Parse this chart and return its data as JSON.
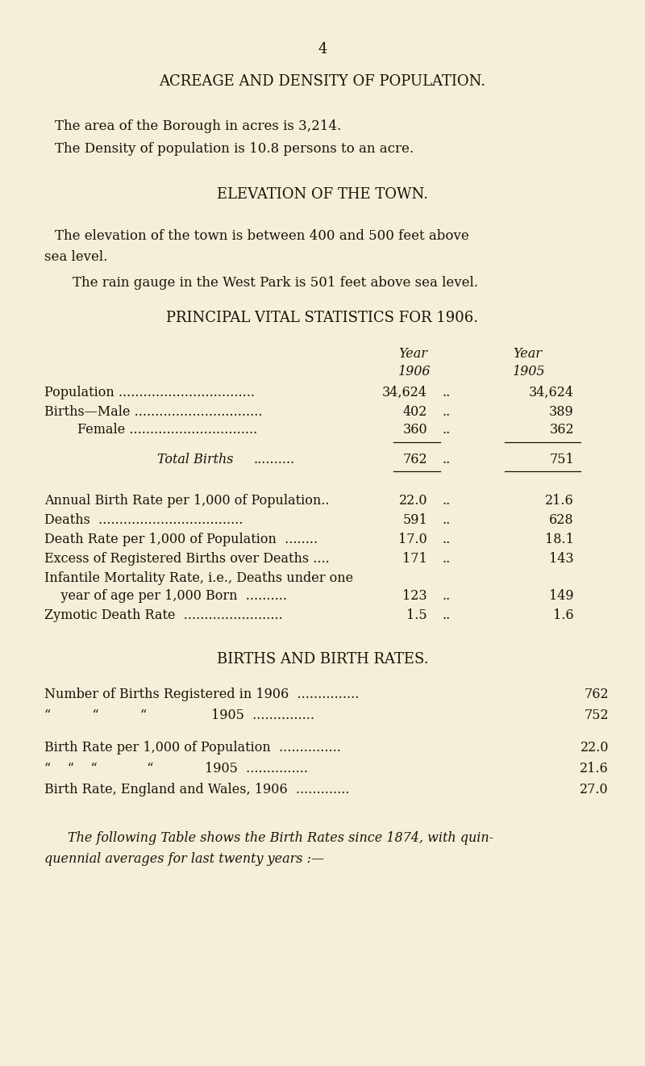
{
  "bg_color": "#f5eed8",
  "text_color": "#1a1208",
  "page_number": "4",
  "title1": "ACREAGE AND DENSITY OF POPULATION.",
  "para1": "The area of the Borough in acres is 3,214.",
  "para2": "The Density of population is 10.8 persons to an acre.",
  "title2": "ELEVATION OF THE TOWN.",
  "para3a": "The elevation of the town is between 400 and 500 feet above",
  "para3b": "sea level.",
  "para4": "The rain gauge in the West Park is 501 feet above sea level.",
  "title3": "PRINCIPAL VITAL STATISTICS FOR 1906.",
  "title4": "BIRTHS AND BIRTH RATES.",
  "footer1": "The following Table shows the Birth Rates since 1874, with quin-",
  "footer2": "quennial averages for last twenty years :—"
}
